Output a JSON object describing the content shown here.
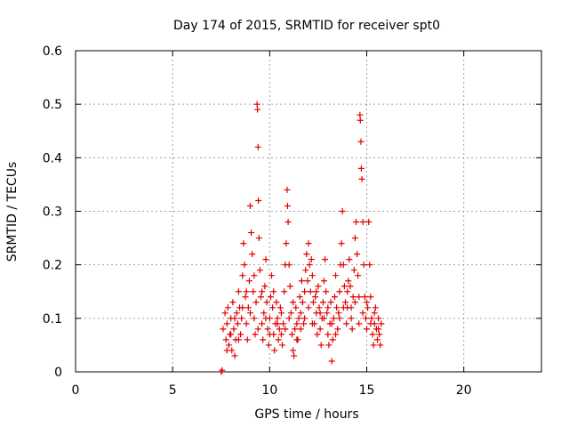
{
  "chart_data": {
    "type": "scatter",
    "title": "Day 174 of 2015, SRMTID for receiver spt0",
    "xlabel": "GPS time / hours",
    "ylabel": "SRMTID / TECUs",
    "xlim": [
      0,
      24
    ],
    "ylim": [
      0,
      0.6
    ],
    "xticks": [
      0,
      5,
      10,
      15,
      20
    ],
    "xtick_labels": [
      "0",
      "5",
      "10",
      "15",
      "20"
    ],
    "yticks": [
      0,
      0.1,
      0.2,
      0.3,
      0.4,
      0.5,
      0.6
    ],
    "ytick_labels": [
      "0",
      "0.1",
      "0.2",
      "0.3",
      "0.4",
      "0.5",
      "0.6"
    ],
    "grid": true,
    "marker": "plus",
    "series": [
      {
        "name": "SRMTID",
        "color": "#e00000",
        "points": [
          [
            7.5,
            0.0
          ],
          [
            7.55,
            0.003
          ],
          [
            7.6,
            0.08
          ],
          [
            7.7,
            0.11
          ],
          [
            7.75,
            0.06
          ],
          [
            7.8,
            0.09
          ],
          [
            7.85,
            0.12
          ],
          [
            7.9,
            0.05
          ],
          [
            7.95,
            0.07
          ],
          [
            8.0,
            0.1
          ],
          [
            8.05,
            0.04
          ],
          [
            8.1,
            0.13
          ],
          [
            8.15,
            0.08
          ],
          [
            8.2,
            0.03
          ],
          [
            8.25,
            0.06
          ],
          [
            8.3,
            0.11
          ],
          [
            8.35,
            0.09
          ],
          [
            8.4,
            0.15
          ],
          [
            8.45,
            0.12
          ],
          [
            8.5,
            0.07
          ],
          [
            8.55,
            0.1
          ],
          [
            8.6,
            0.18
          ],
          [
            8.65,
            0.24
          ],
          [
            8.7,
            0.2
          ],
          [
            8.75,
            0.14
          ],
          [
            8.8,
            0.09
          ],
          [
            8.85,
            0.06
          ],
          [
            8.9,
            0.12
          ],
          [
            8.95,
            0.17
          ],
          [
            9.0,
            0.31
          ],
          [
            9.05,
            0.26
          ],
          [
            9.1,
            0.22
          ],
          [
            9.15,
            0.15
          ],
          [
            9.2,
            0.1
          ],
          [
            9.25,
            0.07
          ],
          [
            9.3,
            0.13
          ],
          [
            9.35,
            0.5
          ],
          [
            9.37,
            0.49
          ],
          [
            9.4,
            0.42
          ],
          [
            9.42,
            0.32
          ],
          [
            9.45,
            0.25
          ],
          [
            9.5,
            0.19
          ],
          [
            9.55,
            0.14
          ],
          [
            9.6,
            0.09
          ],
          [
            9.65,
            0.06
          ],
          [
            9.7,
            0.11
          ],
          [
            9.75,
            0.16
          ],
          [
            9.8,
            0.21
          ],
          [
            9.85,
            0.13
          ],
          [
            9.9,
            0.08
          ],
          [
            9.95,
            0.05
          ],
          [
            10.0,
            0.1
          ],
          [
            10.05,
            0.14
          ],
          [
            10.1,
            0.18
          ],
          [
            10.15,
            0.12
          ],
          [
            10.2,
            0.07
          ],
          [
            10.25,
            0.04
          ],
          [
            10.3,
            0.09
          ],
          [
            10.35,
            0.13
          ],
          [
            10.4,
            0.1
          ],
          [
            10.45,
            0.06
          ],
          [
            10.5,
            0.08
          ],
          [
            10.55,
            0.12
          ],
          [
            10.6,
            0.07
          ],
          [
            10.65,
            0.05
          ],
          [
            10.7,
            0.09
          ],
          [
            10.75,
            0.15
          ],
          [
            10.8,
            0.2
          ],
          [
            10.85,
            0.24
          ],
          [
            10.9,
            0.34
          ],
          [
            10.92,
            0.31
          ],
          [
            10.95,
            0.28
          ],
          [
            11.0,
            0.2
          ],
          [
            11.05,
            0.16
          ],
          [
            11.1,
            0.11
          ],
          [
            11.15,
            0.07
          ],
          [
            11.2,
            0.04
          ],
          [
            11.25,
            0.03
          ],
          [
            11.3,
            0.08
          ],
          [
            11.35,
            0.12
          ],
          [
            11.4,
            0.09
          ],
          [
            11.45,
            0.06
          ],
          [
            11.5,
            0.1
          ],
          [
            11.55,
            0.14
          ],
          [
            11.6,
            0.11
          ],
          [
            11.65,
            0.17
          ],
          [
            11.7,
            0.13
          ],
          [
            11.75,
            0.09
          ],
          [
            11.8,
            0.15
          ],
          [
            11.85,
            0.19
          ],
          [
            11.9,
            0.22
          ],
          [
            11.95,
            0.17
          ],
          [
            12.0,
            0.24
          ],
          [
            12.05,
            0.2
          ],
          [
            12.1,
            0.15
          ],
          [
            12.15,
            0.21
          ],
          [
            12.2,
            0.18
          ],
          [
            12.25,
            0.13
          ],
          [
            12.3,
            0.09
          ],
          [
            12.35,
            0.14
          ],
          [
            12.4,
            0.11
          ],
          [
            12.45,
            0.07
          ],
          [
            12.5,
            0.16
          ],
          [
            12.55,
            0.12
          ],
          [
            12.6,
            0.08
          ],
          [
            12.65,
            0.05
          ],
          [
            12.7,
            0.1
          ],
          [
            12.75,
            0.13
          ],
          [
            12.8,
            0.17
          ],
          [
            12.85,
            0.21
          ],
          [
            12.9,
            0.15
          ],
          [
            12.95,
            0.11
          ],
          [
            13.0,
            0.07
          ],
          [
            13.05,
            0.05
          ],
          [
            13.1,
            0.09
          ],
          [
            13.15,
            0.13
          ],
          [
            13.2,
            0.02
          ],
          [
            13.25,
            0.06
          ],
          [
            13.3,
            0.1
          ],
          [
            13.35,
            0.14
          ],
          [
            13.4,
            0.18
          ],
          [
            13.45,
            0.12
          ],
          [
            13.5,
            0.08
          ],
          [
            13.55,
            0.11
          ],
          [
            13.6,
            0.15
          ],
          [
            13.65,
            0.2
          ],
          [
            13.7,
            0.24
          ],
          [
            13.75,
            0.3
          ],
          [
            13.8,
            0.2
          ],
          [
            13.85,
            0.16
          ],
          [
            13.9,
            0.13
          ],
          [
            13.95,
            0.09
          ],
          [
            14.0,
            0.12
          ],
          [
            14.05,
            0.17
          ],
          [
            14.1,
            0.21
          ],
          [
            14.15,
            0.16
          ],
          [
            14.2,
            0.12
          ],
          [
            14.25,
            0.08
          ],
          [
            14.3,
            0.14
          ],
          [
            14.35,
            0.19
          ],
          [
            14.4,
            0.25
          ],
          [
            14.45,
            0.28
          ],
          [
            14.5,
            0.22
          ],
          [
            14.55,
            0.18
          ],
          [
            14.6,
            0.14
          ],
          [
            14.65,
            0.48
          ],
          [
            14.67,
            0.47
          ],
          [
            14.7,
            0.43
          ],
          [
            14.72,
            0.38
          ],
          [
            14.75,
            0.36
          ],
          [
            14.8,
            0.28
          ],
          [
            14.85,
            0.2
          ],
          [
            14.9,
            0.14
          ],
          [
            14.95,
            0.1
          ],
          [
            15.0,
            0.08
          ],
          [
            15.05,
            0.12
          ],
          [
            15.1,
            0.28
          ],
          [
            15.15,
            0.2
          ],
          [
            15.2,
            0.14
          ],
          [
            15.25,
            0.1
          ],
          [
            15.3,
            0.07
          ],
          [
            15.35,
            0.05
          ],
          [
            15.4,
            0.09
          ],
          [
            15.45,
            0.12
          ],
          [
            15.5,
            0.08
          ],
          [
            15.55,
            0.06
          ],
          [
            15.6,
            0.1
          ],
          [
            15.65,
            0.07
          ],
          [
            15.7,
            0.05
          ],
          [
            15.75,
            0.09
          ],
          [
            8.2,
            0.1
          ],
          [
            8.4,
            0.06
          ],
          [
            8.6,
            0.12
          ],
          [
            8.8,
            0.15
          ],
          [
            9.0,
            0.11
          ],
          [
            9.2,
            0.18
          ],
          [
            9.4,
            0.08
          ],
          [
            9.6,
            0.15
          ],
          [
            9.8,
            0.1
          ],
          [
            10.0,
            0.07
          ],
          [
            10.2,
            0.15
          ],
          [
            10.4,
            0.09
          ],
          [
            10.6,
            0.11
          ],
          [
            10.8,
            0.08
          ],
          [
            11.0,
            0.1
          ],
          [
            11.2,
            0.13
          ],
          [
            11.4,
            0.06
          ],
          [
            11.6,
            0.08
          ],
          [
            11.8,
            0.1
          ],
          [
            12.0,
            0.12
          ],
          [
            12.2,
            0.09
          ],
          [
            12.4,
            0.15
          ],
          [
            12.6,
            0.11
          ],
          [
            12.8,
            0.1
          ],
          [
            13.0,
            0.12
          ],
          [
            13.2,
            0.09
          ],
          [
            13.4,
            0.07
          ],
          [
            13.6,
            0.1
          ],
          [
            13.8,
            0.12
          ],
          [
            14.0,
            0.15
          ],
          [
            14.2,
            0.1
          ],
          [
            14.4,
            0.13
          ],
          [
            14.6,
            0.09
          ],
          [
            14.8,
            0.11
          ],
          [
            15.0,
            0.13
          ],
          [
            15.2,
            0.09
          ],
          [
            15.4,
            0.11
          ],
          [
            15.6,
            0.08
          ],
          [
            7.8,
            0.04
          ],
          [
            8.0,
            0.07
          ]
        ]
      }
    ]
  }
}
